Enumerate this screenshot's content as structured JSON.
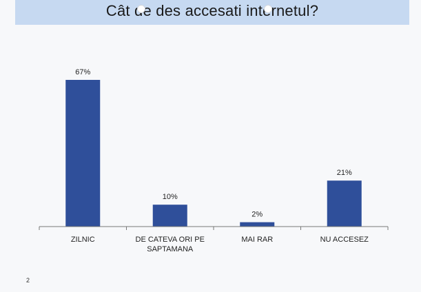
{
  "slide": {
    "title": "Cât de des accesati internetul?",
    "page_number": "2"
  },
  "colors": {
    "bar": "#2f4f9a",
    "title_band": "#c6d9f1",
    "axis": "#777777"
  },
  "chart_data": {
    "type": "bar",
    "title": "Cât de des accesati internetul?",
    "categories": [
      "ZILNIC",
      "DE CATEVA ORI PE SAPTAMANA",
      "MAI RAR",
      "NU ACCESEZ"
    ],
    "category_label_lines": [
      [
        "ZILNIC"
      ],
      [
        "DE CATEVA ORI PE",
        "SAPTAMANA"
      ],
      [
        "MAI RAR"
      ],
      [
        "NU ACCESEZ"
      ]
    ],
    "values": [
      67,
      10,
      2,
      21
    ],
    "data_labels": [
      "67%",
      "10%",
      "2%",
      "21%"
    ],
    "unit": "%",
    "ylim": [
      0,
      100
    ],
    "grid": false,
    "legend": "none"
  }
}
